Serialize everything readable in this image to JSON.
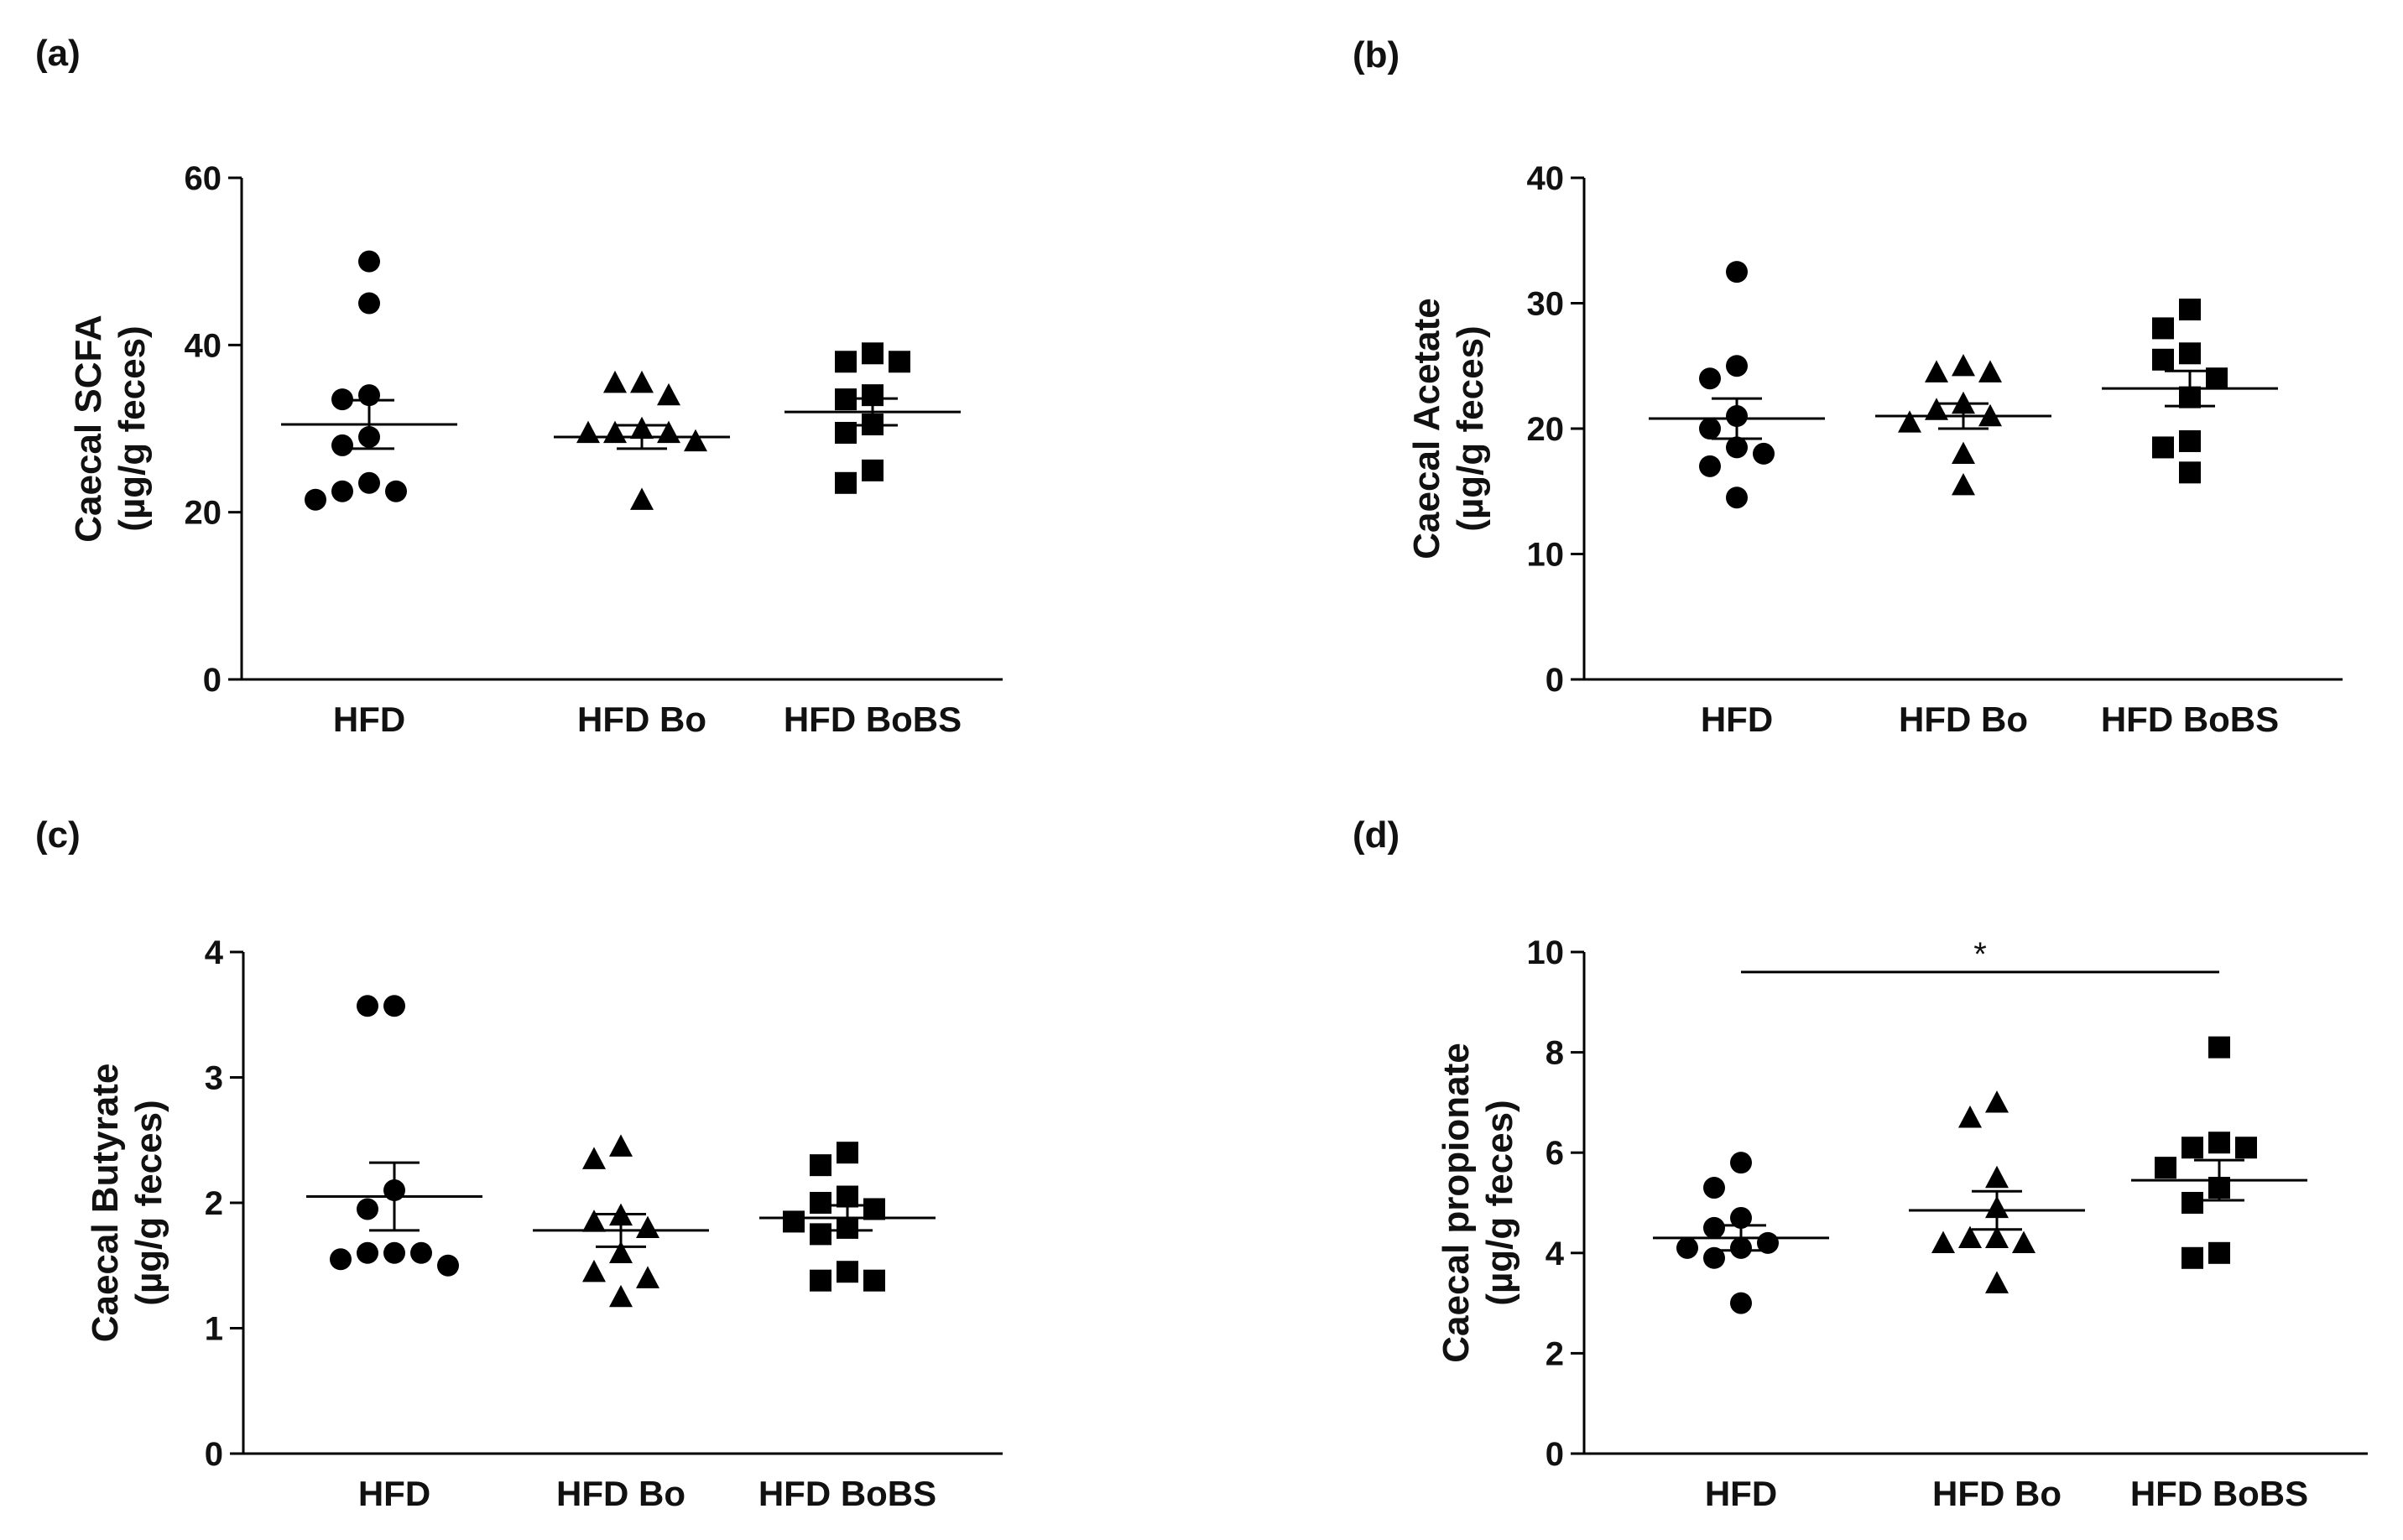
{
  "chart_data": [
    {
      "type": "scatter",
      "label": "(a)",
      "ylabel_line1": "Caecal SCFA",
      "ylabel_line2": "(µg/g feces)",
      "ylim": [
        0,
        60
      ],
      "yticks": [
        0,
        20,
        40,
        60
      ],
      "ytick_labels": [
        "0",
        "20",
        "40",
        "60"
      ],
      "categories": [
        "HFD",
        "HFD Bo",
        "HFD BoBS"
      ],
      "groups": [
        {
          "name": "HFD",
          "marker": "circle",
          "values": [
            50,
            45,
            34,
            33.5,
            29,
            28,
            23.5,
            22.5,
            22.5,
            21.5
          ],
          "mean": 30.5,
          "sem": 2.9
        },
        {
          "name": "HFD Bo",
          "marker": "triangle",
          "values": [
            35.5,
            35.5,
            34,
            30,
            29.5,
            29.5,
            29.5,
            28.5,
            21.5
          ],
          "mean": 29.0,
          "sem": 1.4
        },
        {
          "name": "HFD BoBS",
          "marker": "square",
          "values": [
            39,
            38,
            38,
            34,
            33.5,
            30.5,
            29.5,
            25,
            23.5
          ],
          "mean": 32.0,
          "sem": 1.6
        }
      ],
      "significance": null
    },
    {
      "type": "scatter",
      "label": "(b)",
      "ylabel_line1": "Caecal Acetate",
      "ylabel_line2": "(µg/g feces)",
      "ylim": [
        0,
        40
      ],
      "yticks": [
        0,
        10,
        20,
        30,
        40
      ],
      "ytick_labels": [
        "0",
        "10",
        "20",
        "30",
        "40"
      ],
      "categories": [
        "HFD",
        "HFD Bo",
        "HFD BoBS"
      ],
      "groups": [
        {
          "name": "HFD",
          "marker": "circle",
          "values": [
            32.5,
            25,
            24,
            21,
            20,
            18.5,
            18,
            17,
            14.5
          ],
          "mean": 20.8,
          "sem": 1.6
        },
        {
          "name": "HFD Bo",
          "marker": "triangle",
          "values": [
            25,
            24.5,
            24.5,
            22,
            21.5,
            21,
            20.5,
            18,
            15.5
          ],
          "mean": 21.0,
          "sem": 1.0
        },
        {
          "name": "HFD BoBS",
          "marker": "square",
          "values": [
            29.5,
            28,
            26,
            25.5,
            24,
            22.5,
            19,
            18.5,
            16.5
          ],
          "mean": 23.2,
          "sem": 1.4
        }
      ],
      "significance": null
    },
    {
      "type": "scatter",
      "label": "(c)",
      "ylabel_line1": "Caecal Butyrate",
      "ylabel_line2": "(µg/g feces)",
      "ylim": [
        0,
        4
      ],
      "yticks": [
        0,
        1,
        2,
        3,
        4
      ],
      "ytick_labels": [
        "0",
        "1",
        "2",
        "3",
        "4"
      ],
      "categories": [
        "HFD",
        "HFD Bo",
        "HFD BoBS"
      ],
      "groups": [
        {
          "name": "HFD",
          "marker": "circle",
          "values": [
            3.57,
            3.57,
            2.1,
            1.95,
            1.6,
            1.6,
            1.6,
            1.55,
            1.5
          ],
          "mean": 2.05,
          "sem": 0.27
        },
        {
          "name": "HFD Bo",
          "marker": "triangle",
          "values": [
            2.45,
            2.35,
            1.9,
            1.85,
            1.8,
            1.6,
            1.45,
            1.4,
            1.25
          ],
          "mean": 1.78,
          "sem": 0.13
        },
        {
          "name": "HFD BoBS",
          "marker": "square",
          "values": [
            2.4,
            2.3,
            2.05,
            2.0,
            1.95,
            1.85,
            1.8,
            1.75,
            1.45,
            1.38,
            1.38
          ],
          "mean": 1.88,
          "sem": 0.1
        }
      ],
      "significance": null
    },
    {
      "type": "scatter",
      "label": "(d)",
      "ylabel_line1": "Caecal propionate",
      "ylabel_line2": "(µg/g feces)",
      "ylim": [
        0,
        10
      ],
      "yticks": [
        0,
        2,
        4,
        6,
        8,
        10
      ],
      "ytick_labels": [
        "0",
        "2",
        "4",
        "6",
        "8",
        "10"
      ],
      "categories": [
        "HFD",
        "HFD Bo",
        "HFD BoBS"
      ],
      "groups": [
        {
          "name": "HFD",
          "marker": "circle",
          "values": [
            5.8,
            5.3,
            4.7,
            4.5,
            4.2,
            4.1,
            4.1,
            3.9,
            3.0
          ],
          "mean": 4.3,
          "sem": 0.25
        },
        {
          "name": "HFD Bo",
          "marker": "triangle",
          "values": [
            7.0,
            6.7,
            5.5,
            4.9,
            4.3,
            4.3,
            4.2,
            4.2,
            3.4
          ],
          "mean": 4.85,
          "sem": 0.38
        },
        {
          "name": "HFD BoBS",
          "marker": "square",
          "values": [
            8.1,
            6.2,
            6.1,
            6.1,
            5.7,
            5.3,
            5.0,
            4.0,
            3.9
          ],
          "mean": 5.45,
          "sem": 0.4
        }
      ],
      "significance": {
        "from": "HFD",
        "to": "HFD BoBS",
        "y": 9.6,
        "label": "*"
      }
    }
  ]
}
